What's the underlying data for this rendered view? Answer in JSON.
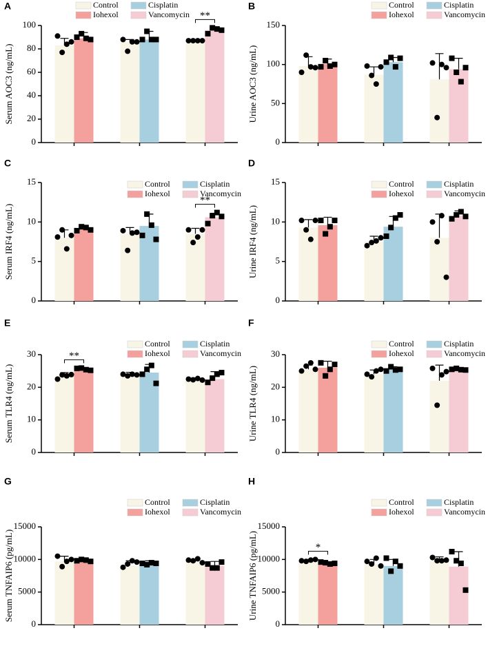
{
  "chart_data": [
    {
      "type": "bar",
      "panel": "A",
      "ylabel": "Serum AOC3 (ng/mL)",
      "ylim": [
        0,
        100
      ],
      "yticks": [
        0,
        20,
        40,
        60,
        80,
        100
      ],
      "legend": "upper center",
      "categories": [
        null,
        null,
        null
      ],
      "series": [
        {
          "name": "Control",
          "color": "#f8f4e6",
          "marker": "circle",
          "values": [
            83,
            86,
            87
          ],
          "errors": [
            6,
            2,
            1
          ],
          "points": [
            [
              91,
              77,
              84,
              86
            ],
            [
              88,
              78,
              86,
              86
            ],
            [
              87,
              87,
              87,
              87
            ]
          ]
        },
        {
          "name": "Iohexol",
          "color": "#f4a09c",
          "marker": "square",
          "values": [
            89,
            null,
            null
          ],
          "errors": [
            5,
            null,
            null
          ],
          "points": [
            [
              90,
              93,
              89,
              88
            ],
            null,
            null
          ]
        },
        {
          "name": "Cisplatin",
          "color": "#a8cfe0",
          "marker": "square",
          "values": [
            null,
            88,
            null
          ],
          "errors": [
            null,
            7,
            null
          ],
          "points": [
            null,
            [
              88,
              95,
              88,
              88
            ],
            null
          ]
        },
        {
          "name": "Vancomycin",
          "color": "#f5ccd4",
          "marker": "square",
          "values": [
            null,
            null,
            96
          ],
          "errors": [
            null,
            null,
            2
          ],
          "points": [
            null,
            null,
            [
              93,
              98,
              97,
              96
            ]
          ]
        }
      ],
      "annotations": [
        {
          "text": "**",
          "group": 2
        }
      ]
    },
    {
      "type": "bar",
      "panel": "B",
      "ylabel": "Urine AOC3 (ng/mL)",
      "ylim": [
        0,
        150
      ],
      "yticks": [
        0,
        50,
        100,
        150
      ],
      "legend": "upper right",
      "categories": [
        null,
        null,
        null
      ],
      "series": [
        {
          "name": "Control",
          "color": "#f8f4e6",
          "marker": "circle",
          "values": [
            98,
            87,
            81
          ],
          "errors": [
            12,
            10,
            33
          ],
          "points": [
            [
              90,
              112,
              97,
              96
            ],
            [
              98,
              86,
              75,
              97
            ],
            [
              102,
              32,
              100,
              96
            ]
          ]
        },
        {
          "name": "Iohexol",
          "color": "#f4a09c",
          "marker": "square",
          "values": [
            101,
            null,
            null
          ],
          "errors": [
            6,
            null,
            null
          ],
          "points": [
            [
              97,
              105,
              98,
              100
            ],
            null,
            null
          ]
        },
        {
          "name": "Cisplatin",
          "color": "#a8cfe0",
          "marker": "square",
          "values": [
            null,
            103,
            null
          ],
          "errors": [
            null,
            6,
            null
          ],
          "points": [
            null,
            [
              103,
              109,
              97,
              108
            ],
            null
          ]
        },
        {
          "name": "Vancomycin",
          "color": "#f5ccd4",
          "marker": "square",
          "values": [
            null,
            null,
            94
          ],
          "errors": [
            null,
            null,
            14
          ],
          "points": [
            null,
            null,
            [
              108,
              90,
              78,
              96
            ]
          ]
        }
      ],
      "annotations": []
    },
    {
      "type": "bar",
      "panel": "C",
      "ylabel": "Serum IRF4 (ng/mL)",
      "ylim": [
        0,
        15
      ],
      "yticks": [
        0,
        5,
        10,
        15
      ],
      "legend": "upper right",
      "categories": [
        null,
        null,
        null
      ],
      "series": [
        {
          "name": "Control",
          "color": "#f8f4e6",
          "marker": "circle",
          "values": [
            8,
            8.5,
            8.5
          ],
          "errors": [
            1,
            0.8,
            0.7
          ],
          "points": [
            [
              8.1,
              9,
              6.6,
              8.3
            ],
            [
              8.9,
              6.4,
              8.6,
              8.7
            ],
            [
              9,
              7.4,
              8.1,
              9
            ]
          ]
        },
        {
          "name": "Iohexol",
          "color": "#f4a09c",
          "marker": "square",
          "values": [
            9.2,
            null,
            null
          ],
          "errors": [
            0.3,
            null,
            null
          ],
          "points": [
            [
              8.9,
              9.4,
              9.3,
              9
            ],
            null,
            null
          ]
        },
        {
          "name": "Cisplatin",
          "color": "#a8cfe0",
          "marker": "square",
          "values": [
            null,
            9.5,
            null
          ],
          "errors": [
            null,
            1.5,
            null
          ],
          "points": [
            null,
            [
              8.3,
              11,
              9.6,
              7.8
            ],
            null
          ]
        },
        {
          "name": "Vancomycin",
          "color": "#f5ccd4",
          "marker": "square",
          "values": [
            null,
            null,
            10.6
          ],
          "errors": [
            null,
            null,
            0.5
          ],
          "points": [
            null,
            null,
            [
              9.8,
              10.8,
              11.2,
              10.7
            ]
          ]
        }
      ],
      "annotations": [
        {
          "text": "**",
          "group": 2
        }
      ]
    },
    {
      "type": "bar",
      "panel": "D",
      "ylabel": "Urine IRF4 (ng/mL)",
      "ylim": [
        0,
        15
      ],
      "yticks": [
        0,
        5,
        10,
        15
      ],
      "legend": "upper right",
      "categories": [
        null,
        null,
        null
      ],
      "series": [
        {
          "name": "Control",
          "color": "#f8f4e6",
          "marker": "circle",
          "values": [
            9.3,
            7.5,
            8
          ],
          "errors": [
            1,
            0.7,
            3
          ],
          "points": [
            [
              10.2,
              9,
              7.8,
              10.2
            ],
            [
              7,
              7.4,
              7.6,
              8
            ],
            [
              10,
              7.5,
              10.8,
              3
            ]
          ]
        },
        {
          "name": "Iohexol",
          "color": "#f4a09c",
          "marker": "square",
          "values": [
            9.6,
            null,
            null
          ],
          "errors": [
            1,
            null,
            null
          ],
          "points": [
            [
              10.2,
              8.5,
              9.4,
              10.2
            ],
            null,
            null
          ]
        },
        {
          "name": "Cisplatin",
          "color": "#a8cfe0",
          "marker": "square",
          "values": [
            null,
            9.4,
            null
          ],
          "errors": [
            null,
            1.3,
            null
          ],
          "points": [
            null,
            [
              8.2,
              9.3,
              10.5,
              10.9
            ],
            null
          ]
        },
        {
          "name": "Vancomycin",
          "color": "#f5ccd4",
          "marker": "square",
          "values": [
            null,
            null,
            10.8
          ],
          "errors": [
            null,
            null,
            0.6
          ],
          "points": [
            null,
            null,
            [
              10.4,
              10.9,
              11.3,
              10.7
            ]
          ]
        }
      ],
      "annotations": []
    },
    {
      "type": "bar",
      "panel": "E",
      "ylabel": "Serum TLR4 (ng/mL)",
      "ylim": [
        0,
        30
      ],
      "yticks": [
        0,
        10,
        20,
        30
      ],
      "legend": "upper right",
      "categories": [
        null,
        null,
        null
      ],
      "series": [
        {
          "name": "Control",
          "color": "#f8f4e6",
          "marker": "circle",
          "values": [
            23.5,
            24,
            22.5
          ],
          "errors": [
            1,
            0.6,
            0.4
          ],
          "points": [
            [
              22.5,
              23.8,
              23.5,
              23.9
            ],
            [
              24,
              23.5,
              24,
              23.8
            ],
            [
              22.5,
              22.3,
              22.7,
              22.2
            ]
          ]
        },
        {
          "name": "Iohexol",
          "color": "#f4a09c",
          "marker": "square",
          "values": [
            25.5,
            null,
            null
          ],
          "errors": [
            0.5,
            null,
            null
          ],
          "points": [
            [
              25.8,
              25.9,
              25.4,
              25.2
            ],
            null,
            null
          ]
        },
        {
          "name": "Cisplatin",
          "color": "#a8cfe0",
          "marker": "square",
          "values": [
            null,
            24.5,
            null
          ],
          "errors": [
            null,
            2.5,
            null
          ],
          "points": [
            null,
            [
              24,
              25.5,
              26.7,
              21.2
            ],
            null
          ]
        },
        {
          "name": "Vancomycin",
          "color": "#f5ccd4",
          "marker": "square",
          "values": [
            null,
            null,
            22.5
          ],
          "errors": [
            null,
            null,
            2.3
          ],
          "points": [
            null,
            null,
            [
              21.5,
              22.8,
              24,
              24.5
            ]
          ]
        }
      ],
      "annotations": [
        {
          "text": "**",
          "group": 0
        }
      ]
    },
    {
      "type": "bar",
      "panel": "F",
      "ylabel": "Urine TLR4 (ng/mL)",
      "ylim": [
        0,
        30
      ],
      "yticks": [
        0,
        10,
        20,
        30
      ],
      "legend": "upper right",
      "categories": [
        null,
        null,
        null
      ],
      "series": [
        {
          "name": "Control",
          "color": "#f8f4e6",
          "marker": "circle",
          "values": [
            25.5,
            24,
            22
          ],
          "errors": [
            1.3,
            1.3,
            4.8
          ],
          "points": [
            [
              25,
              26.5,
              27.5,
              25.5
            ],
            [
              24,
              23.2,
              25,
              25.5
            ],
            [
              25.8,
              14.5,
              23.8,
              24.8
            ]
          ]
        },
        {
          "name": "Iohexol",
          "color": "#f4a09c",
          "marker": "square",
          "values": [
            26,
            null,
            null
          ],
          "errors": [
            2,
            null,
            null
          ],
          "points": [
            [
              27.5,
              23.5,
              25.5,
              27
            ],
            null,
            null
          ]
        },
        {
          "name": "Cisplatin",
          "color": "#a8cfe0",
          "marker": "square",
          "values": [
            null,
            25.5,
            null
          ],
          "errors": [
            null,
            0.8,
            null
          ],
          "points": [
            null,
            [
              25,
              26.3,
              25.3,
              25.5
            ],
            null
          ]
        },
        {
          "name": "Vancomycin",
          "color": "#f5ccd4",
          "marker": "square",
          "values": [
            null,
            null,
            25.3
          ],
          "errors": [
            null,
            null,
            0.5
          ],
          "points": [
            null,
            null,
            [
              25.5,
              25.8,
              25.4,
              25.3
            ]
          ]
        }
      ],
      "annotations": []
    },
    {
      "type": "bar",
      "panel": "G",
      "ylabel": "Serum TNFAIP6 (pg/mL)",
      "ylim": [
        0,
        15000
      ],
      "yticks": [
        0,
        5000,
        10000,
        15000
      ],
      "legend": "upper right",
      "categories": [
        null,
        null,
        null
      ],
      "series": [
        {
          "name": "Control",
          "color": "#f8f4e6",
          "marker": "circle",
          "values": [
            9700,
            9100,
            9600
          ],
          "errors": [
            800,
            700,
            400
          ],
          "points": [
            [
              10500,
              8900,
              9700,
              10000
            ],
            [
              8800,
              9300,
              9800,
              9600
            ],
            [
              9900,
              9800,
              10100,
              9500
            ]
          ]
        },
        {
          "name": "Iohexol",
          "color": "#f4a09c",
          "marker": "square",
          "values": [
            9800,
            null,
            null
          ],
          "errors": [
            300,
            null,
            null
          ],
          "points": [
            [
              9800,
              10000,
              9900,
              9700
            ],
            null,
            null
          ]
        },
        {
          "name": "Cisplatin",
          "color": "#a8cfe0",
          "marker": "square",
          "values": [
            null,
            9500,
            null
          ],
          "errors": [
            null,
            300,
            null
          ],
          "points": [
            null,
            [
              9400,
              9200,
              9500,
              9400
            ],
            null
          ]
        },
        {
          "name": "Vancomycin",
          "color": "#f5ccd4",
          "marker": "square",
          "values": [
            null,
            null,
            9000
          ],
          "errors": [
            null,
            null,
            700
          ],
          "points": [
            null,
            null,
            [
              9300,
              8700,
              8700,
              9600
            ]
          ]
        }
      ],
      "annotations": []
    },
    {
      "type": "bar",
      "panel": "H",
      "ylabel": "Urine TNFAIP6 (pg/mL)",
      "ylim": [
        0,
        15000
      ],
      "yticks": [
        0,
        5000,
        10000,
        15000
      ],
      "legend": "upper right",
      "categories": [
        null,
        null,
        null
      ],
      "series": [
        {
          "name": "Control",
          "color": "#f8f4e6",
          "marker": "circle",
          "values": [
            9700,
            9300,
            9800
          ],
          "errors": [
            300,
            700,
            600
          ],
          "points": [
            [
              9800,
              9700,
              9900,
              10000
            ],
            [
              9700,
              9300,
              10200,
              9000
            ],
            [
              10300,
              9800,
              9800,
              9900
            ]
          ]
        },
        {
          "name": "Iohexol",
          "color": "#f4a09c",
          "marker": "square",
          "values": [
            9400,
            null,
            null
          ],
          "errors": [
            200,
            null,
            null
          ],
          "points": [
            [
              9600,
              9500,
              9300,
              9400
            ],
            null,
            null
          ]
        },
        {
          "name": "Cisplatin",
          "color": "#a8cfe0",
          "marker": "square",
          "values": [
            null,
            9000,
            null
          ],
          "errors": [
            null,
            1000,
            null
          ],
          "points": [
            null,
            [
              10200,
              8200,
              9700,
              9000
            ],
            null
          ]
        },
        {
          "name": "Vancomycin",
          "color": "#f5ccd4",
          "marker": "square",
          "values": [
            null,
            null,
            8900
          ],
          "errors": [
            null,
            null,
            2300
          ],
          "points": [
            null,
            null,
            [
              11200,
              9800,
              9400,
              5300
            ]
          ]
        }
      ],
      "annotations": [
        {
          "text": "*",
          "group": 0
        }
      ]
    }
  ]
}
